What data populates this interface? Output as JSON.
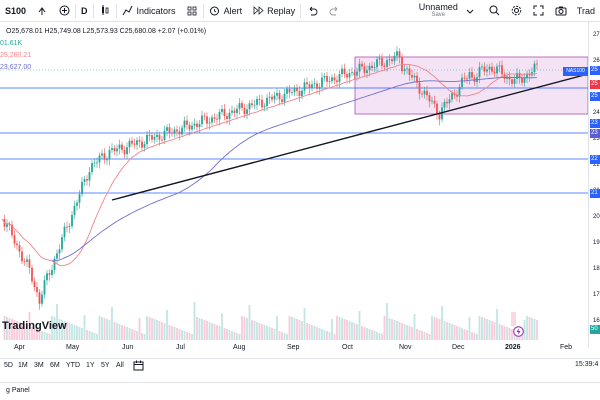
{
  "toolbar": {
    "symbol": "S100",
    "interval": "D",
    "indicators_label": "Indicators",
    "alert_label": "Alert",
    "replay_label": "Replay",
    "layout_name": "Unnamed",
    "layout_status": "Save",
    "trade_label": "Trad"
  },
  "legend": {
    "ohlc": "O25,678.01 H25,749.08 L25,573.93 C25,680.08 +2.07 (+0.01%)",
    "volume": "01.61K",
    "ma1": "25,260.21",
    "ma2": "23,627.00"
  },
  "price_axis": {
    "ticks": [
      "27",
      "26",
      "25",
      "24",
      "23",
      "22",
      "21",
      "20",
      "19",
      "18",
      "17",
      "16"
    ],
    "tags": [
      {
        "text": "25",
        "color": "#2962ff"
      },
      {
        "text": "25",
        "color": "#f23645"
      },
      {
        "text": "25",
        "color": "#2962ff"
      },
      {
        "text": "23",
        "color": "#2962ff"
      },
      {
        "text": "23",
        "color": "#5b5bd6"
      },
      {
        "text": "22",
        "color": "#2962ff"
      },
      {
        "text": "21",
        "color": "#2962ff"
      },
      {
        "text": "50",
        "color": "#26a69a"
      }
    ]
  },
  "symbol_tag": "NAS100",
  "time_axis": [
    "Apr",
    "May",
    "Jun",
    "Jul",
    "Aug",
    "Sep",
    "Oct",
    "Nov",
    "Dec",
    "2026",
    "Feb"
  ],
  "ranges": [
    "5D",
    "1M",
    "3M",
    "6M",
    "YTD",
    "1Y",
    "5Y",
    "All"
  ],
  "clock": "15:39:4",
  "footer_label": "g Panel",
  "logo_text": "TradingView",
  "colors": {
    "up": "#26a69a",
    "down": "#ef5350",
    "ma_red": "#f0858a",
    "ma_blue": "#6f6fc8",
    "zone": "#f3e3f5",
    "zone_border": "#b04fb8",
    "hline": "#2962ff"
  }
}
